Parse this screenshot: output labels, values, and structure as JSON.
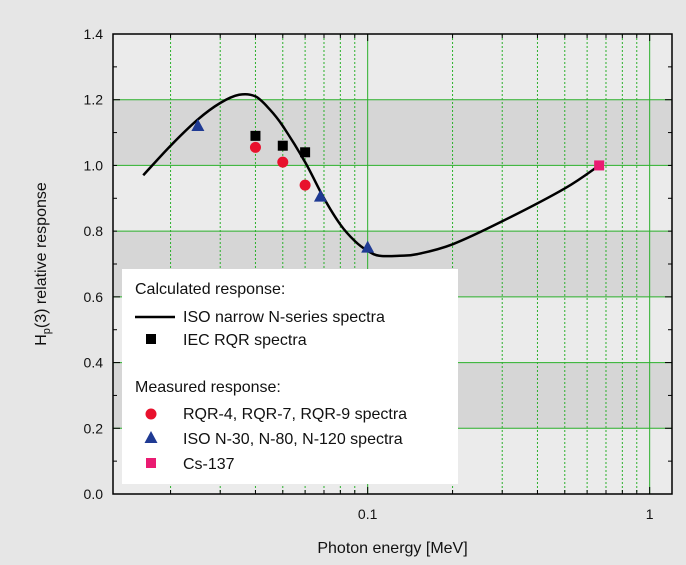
{
  "chart_data": {
    "type": "scatter",
    "xlabel": "Photon energy [MeV]",
    "ylabel_main": "H",
    "ylabel_sub": "p",
    "ylabel_rest": "(3) relative response",
    "x_scale": "log",
    "xlim": [
      0.0125,
      1.2
    ],
    "ylim": [
      0,
      1.4
    ],
    "x_ticks": [
      {
        "value": 0.1,
        "label": "0.1"
      },
      {
        "value": 1,
        "label": "1"
      }
    ],
    "y_ticks": [
      {
        "value": 0.0,
        "label": "0.0"
      },
      {
        "value": 0.2,
        "label": "0.2"
      },
      {
        "value": 0.4,
        "label": "0.4"
      },
      {
        "value": 0.6,
        "label": "0.6"
      },
      {
        "value": 0.8,
        "label": "0.8"
      },
      {
        "value": 1.0,
        "label": "1.0"
      },
      {
        "value": 1.2,
        "label": "1.2"
      },
      {
        "value": 1.4,
        "label": "1.4"
      }
    ],
    "grid": true,
    "legend_position": "bottom-left",
    "legend": {
      "heading_calculated": "Calculated response:",
      "heading_measured": "Measured response:"
    },
    "series": [
      {
        "name": "ISO narrow N-series spectra",
        "kind": "line",
        "color": "#000000",
        "x": [
          0.016,
          0.02,
          0.025,
          0.03,
          0.035,
          0.04,
          0.045,
          0.05,
          0.06,
          0.07,
          0.08,
          0.09,
          0.1,
          0.11,
          0.13,
          0.15,
          0.2,
          0.3,
          0.5,
          0.662
        ],
        "y": [
          0.97,
          1.06,
          1.14,
          1.19,
          1.215,
          1.21,
          1.17,
          1.12,
          1.01,
          0.9,
          0.82,
          0.77,
          0.74,
          0.725,
          0.725,
          0.73,
          0.76,
          0.83,
          0.93,
          1.0
        ]
      },
      {
        "name": "IEC RQR spectra",
        "kind": "marker",
        "marker": "square",
        "color": "#000000",
        "x": [
          0.04,
          0.05,
          0.06
        ],
        "y": [
          1.09,
          1.06,
          1.04
        ]
      },
      {
        "name": "RQR-4, RQR-7, RQR-9 spectra",
        "kind": "marker",
        "marker": "circle",
        "color": "#e8112d",
        "x": [
          0.04,
          0.05,
          0.06
        ],
        "y": [
          1.055,
          1.01,
          0.94
        ]
      },
      {
        "name": "ISO N-30, N-80, N-120 spectra",
        "kind": "marker",
        "marker": "triangle",
        "color": "#1f3a93",
        "x": [
          0.025,
          0.068,
          0.1
        ],
        "y": [
          1.12,
          0.905,
          0.75
        ]
      },
      {
        "name": "Cs-137",
        "kind": "marker",
        "marker": "square",
        "color": "#ea1b72",
        "x": [
          0.662
        ],
        "y": [
          1.0
        ]
      }
    ]
  }
}
